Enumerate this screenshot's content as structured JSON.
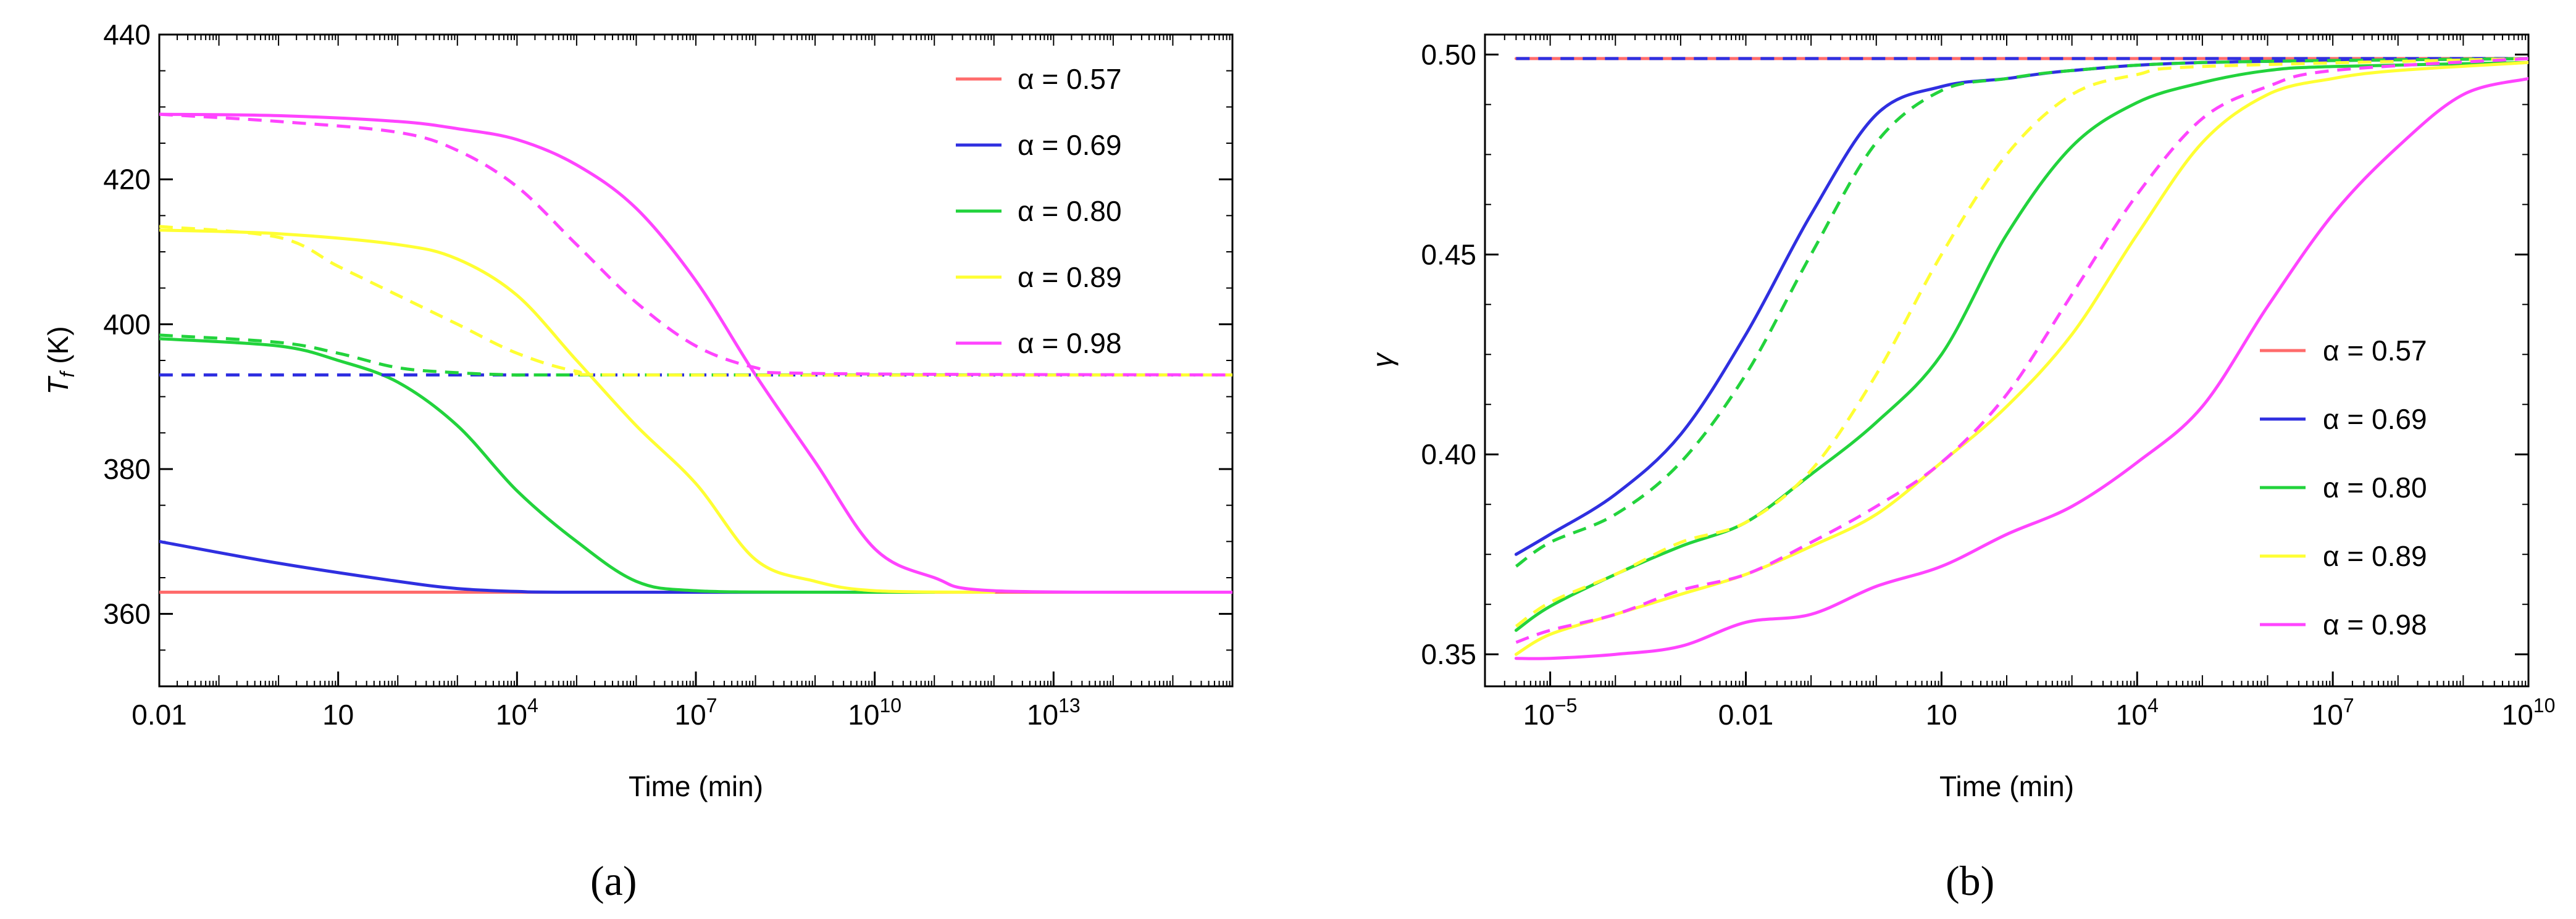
{
  "captions": {
    "a": "(a)",
    "b": "(b)"
  },
  "colors": {
    "a057": "#ff6b6b",
    "a069": "#2f2fe0",
    "a080": "#22d33c",
    "a089": "#ffff33",
    "a098": "#ff44ff"
  },
  "chart_data": [
    {
      "type": "line",
      "panel": "a",
      "xlabel": "Time (min)",
      "ylabel": "T_f (K)",
      "ylabel_main": "T",
      "ylabel_sub": "f",
      "ylabel_unit": " (K)",
      "x_scale": "log",
      "xlim": [
        0.01,
        1e+16
      ],
      "ylim": [
        350,
        440
      ],
      "x_ticks": [
        {
          "v": 0.01,
          "base": "0.01",
          "exp": ""
        },
        {
          "v": 10,
          "base": "10",
          "exp": ""
        },
        {
          "v": 10000,
          "base": "10",
          "exp": "4"
        },
        {
          "v": 10000000.0,
          "base": "10",
          "exp": "7"
        },
        {
          "v": 10000000000.0,
          "base": "10",
          "exp": "10"
        },
        {
          "v": 10000000000000.0,
          "base": "10",
          "exp": "13"
        }
      ],
      "y_ticks": [
        {
          "v": 360,
          "label": "360"
        },
        {
          "v": 380,
          "label": "380"
        },
        {
          "v": 400,
          "label": "400"
        },
        {
          "v": 420,
          "label": "420"
        },
        {
          "v": 440,
          "label": "440"
        }
      ],
      "legend": {
        "position": "top-right",
        "entries": [
          {
            "label": "α = 0.57",
            "color": "#ff6b6b"
          },
          {
            "label": "α = 0.69",
            "color": "#2f2fe0"
          },
          {
            "label": "α = 0.80",
            "color": "#22d33c"
          },
          {
            "label": "α = 0.89",
            "color": "#ffff33"
          },
          {
            "label": "α = 0.98",
            "color": "#ff44ff"
          }
        ]
      },
      "series": [
        {
          "name": "α = 0.57",
          "color": "#ff6b6b",
          "dashed": false,
          "x": [
            0.01,
            1e+16
          ],
          "y": [
            363,
            363
          ]
        },
        {
          "name": "α = 0.69",
          "color": "#2f2fe0",
          "dashed": false,
          "x": [
            0.01,
            1,
            100,
            1000,
            10000,
            100000.0,
            10000000000.0
          ],
          "y": [
            370,
            367,
            364.5,
            363.5,
            363.1,
            363,
            363
          ]
        },
        {
          "name": "α = 0.80",
          "color": "#22d33c",
          "dashed": false,
          "x": [
            0.01,
            1,
            10,
            100,
            1000,
            10000,
            100000.0,
            1000000.0,
            10000000.0,
            1000000000.0,
            100000000000.0
          ],
          "y": [
            398,
            397,
            395,
            392,
            386,
            377,
            370,
            364.5,
            363.2,
            363,
            363
          ]
        },
        {
          "name": "α = 0.89",
          "color": "#ffff33",
          "dashed": false,
          "x": [
            0.01,
            1,
            100,
            1000,
            10000,
            100000.0,
            1000000.0,
            10000000.0,
            100000000.0,
            1000000000.0,
            10000000000.0,
            1000000000000.0
          ],
          "y": [
            413,
            412.5,
            411,
            409,
            404,
            395,
            386,
            378,
            367.5,
            364.5,
            363.2,
            363
          ]
        },
        {
          "name": "α = 0.98",
          "color": "#ff44ff",
          "dashed": false,
          "x": [
            0.01,
            1,
            100,
            1000,
            10000,
            100000.0,
            1000000.0,
            10000000.0,
            100000000.0,
            1000000000.0,
            10000000000.0,
            100000000000.0,
            1000000000000.0,
            1e+16
          ],
          "y": [
            429,
            428.8,
            428,
            427,
            425.5,
            422,
            416,
            406,
            393,
            381,
            369,
            365,
            363.2,
            363
          ]
        },
        {
          "name": "",
          "color": "#2f2fe0",
          "dashed": true,
          "x": [
            0.01,
            1e+16
          ],
          "y": [
            393,
            393
          ]
        },
        {
          "name": "",
          "color": "#22d33c",
          "dashed": true,
          "x": [
            0.01,
            1,
            10,
            100,
            1000,
            10000,
            100000.0,
            1e+16
          ],
          "y": [
            398.5,
            397.5,
            396,
            394,
            393.3,
            393,
            393,
            393
          ]
        },
        {
          "name": "",
          "color": "#ffff33",
          "dashed": true,
          "x": [
            0.01,
            1,
            10,
            100,
            1000,
            10000,
            100000.0,
            1000000.0,
            1e+16
          ],
          "y": [
            413.5,
            412,
            408,
            404,
            400,
            396,
            393.5,
            393,
            393
          ]
        },
        {
          "name": "",
          "color": "#ff44ff",
          "dashed": true,
          "x": [
            0.01,
            1,
            100,
            1000,
            10000,
            100000.0,
            1000000.0,
            10000000.0,
            100000000.0,
            1000000000.0,
            1e+16
          ],
          "y": [
            429,
            428,
            426.5,
            424,
            419,
            411,
            403,
            397,
            394,
            393.2,
            393
          ]
        }
      ]
    },
    {
      "type": "line",
      "panel": "b",
      "xlabel": "Time (min)",
      "ylabel": "γ",
      "x_scale": "log",
      "xlim": [
        1e-06,
        10000000000.0
      ],
      "ylim": [
        0.342,
        0.505
      ],
      "x_ticks": [
        {
          "v": 1e-05,
          "base": "10",
          "exp": "−5"
        },
        {
          "v": 0.01,
          "base": "0.01",
          "exp": ""
        },
        {
          "v": 10,
          "base": "10",
          "exp": ""
        },
        {
          "v": 10000,
          "base": "10",
          "exp": "4"
        },
        {
          "v": 10000000.0,
          "base": "10",
          "exp": "7"
        },
        {
          "v": 10000000000.0,
          "base": "10",
          "exp": "10"
        }
      ],
      "y_ticks": [
        {
          "v": 0.35,
          "label": "0.35"
        },
        {
          "v": 0.4,
          "label": "0.40"
        },
        {
          "v": 0.45,
          "label": "0.45"
        },
        {
          "v": 0.5,
          "label": "0.50"
        }
      ],
      "legend": {
        "position": "bottom-right",
        "entries": [
          {
            "label": "α = 0.57",
            "color": "#ff6b6b"
          },
          {
            "label": "α = 0.69",
            "color": "#2f2fe0"
          },
          {
            "label": "α = 0.80",
            "color": "#22d33c"
          },
          {
            "label": "α = 0.89",
            "color": "#ffff33"
          },
          {
            "label": "α = 0.98",
            "color": "#ff44ff"
          }
        ]
      },
      "series": [
        {
          "name": "α = 0.57",
          "color": "#ff6b6b",
          "dashed": false,
          "x": [
            3e-06,
            10000000000.0
          ],
          "y": [
            0.499,
            0.499
          ]
        },
        {
          "name": "α = 0.69",
          "color": "#2f2fe0",
          "dashed": false,
          "x": [
            3e-06,
            1e-05,
            0.0001,
            0.001,
            0.01,
            0.1,
            1,
            10,
            100,
            1000,
            100000.0,
            10000000000.0
          ],
          "y": [
            0.375,
            0.38,
            0.39,
            0.405,
            0.43,
            0.46,
            0.485,
            0.492,
            0.494,
            0.496,
            0.498,
            0.499
          ]
        },
        {
          "name": "α = 0.80",
          "color": "#22d33c",
          "dashed": false,
          "x": [
            3e-06,
            1e-05,
            0.0001,
            0.001,
            0.01,
            0.1,
            1,
            10,
            100,
            1000,
            10000,
            100000.0,
            1000000.0,
            10000000.0,
            10000000000.0
          ],
          "y": [
            0.356,
            0.362,
            0.37,
            0.377,
            0.383,
            0.395,
            0.408,
            0.425,
            0.455,
            0.477,
            0.488,
            0.493,
            0.496,
            0.497,
            0.498
          ]
        },
        {
          "name": "α = 0.89",
          "color": "#ffff33",
          "dashed": false,
          "x": [
            3e-06,
            1e-05,
            0.0001,
            0.001,
            0.01,
            0.1,
            1,
            10,
            100,
            1000,
            10000,
            100000.0,
            1000000.0,
            10000000.0,
            100000000.0,
            10000000000.0
          ],
          "y": [
            0.35,
            0.355,
            0.36,
            0.365,
            0.37,
            0.377,
            0.385,
            0.398,
            0.412,
            0.43,
            0.455,
            0.478,
            0.49,
            0.494,
            0.496,
            0.498
          ]
        },
        {
          "name": "α = 0.98",
          "color": "#ff44ff",
          "dashed": false,
          "x": [
            3e-06,
            1e-05,
            0.0001,
            0.001,
            0.01,
            0.1,
            1,
            10,
            100,
            1000,
            10000,
            100000.0,
            1000000.0,
            10000000.0,
            100000000.0,
            1000000000.0,
            10000000000.0
          ],
          "y": [
            0.349,
            0.349,
            0.35,
            0.352,
            0.358,
            0.36,
            0.367,
            0.372,
            0.38,
            0.387,
            0.398,
            0.412,
            0.437,
            0.46,
            0.477,
            0.49,
            0.494
          ]
        },
        {
          "name": "",
          "color": "#2f2fe0",
          "dashed": true,
          "x": [
            3e-06,
            10000000000.0
          ],
          "y": [
            0.499,
            0.499
          ]
        },
        {
          "name": "",
          "color": "#22d33c",
          "dashed": true,
          "x": [
            3e-06,
            1e-05,
            0.0001,
            0.001,
            0.01,
            0.1,
            1,
            10,
            100,
            1000,
            100000.0,
            10000000000.0
          ],
          "y": [
            0.372,
            0.378,
            0.385,
            0.398,
            0.42,
            0.45,
            0.478,
            0.491,
            0.494,
            0.496,
            0.498,
            0.499
          ]
        },
        {
          "name": "",
          "color": "#ffff33",
          "dashed": true,
          "x": [
            3e-06,
            1e-05,
            0.0001,
            0.001,
            0.01,
            0.1,
            1,
            10,
            100,
            1000,
            10000,
            100000.0,
            10000000000.0
          ],
          "y": [
            0.357,
            0.363,
            0.37,
            0.378,
            0.383,
            0.396,
            0.42,
            0.45,
            0.475,
            0.49,
            0.495,
            0.497,
            0.499
          ]
        },
        {
          "name": "",
          "color": "#ff44ff",
          "dashed": true,
          "x": [
            3e-06,
            1e-05,
            0.0001,
            0.001,
            0.01,
            0.1,
            1,
            10,
            100,
            1000,
            10000,
            100000.0,
            1000000.0,
            10000000.0,
            10000000000.0
          ],
          "y": [
            0.353,
            0.356,
            0.36,
            0.366,
            0.37,
            0.378,
            0.387,
            0.398,
            0.415,
            0.44,
            0.465,
            0.484,
            0.492,
            0.496,
            0.499
          ]
        }
      ]
    }
  ]
}
